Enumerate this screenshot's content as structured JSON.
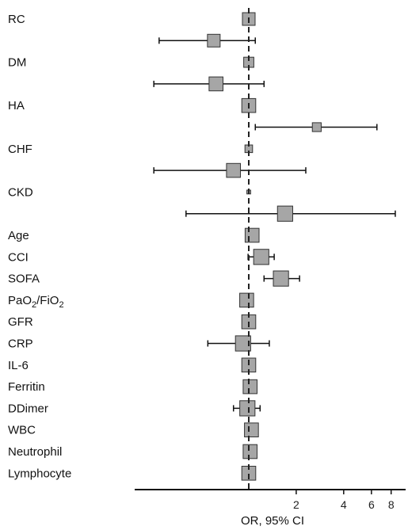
{
  "chart_data": {
    "type": "forest",
    "xlabel": "OR, 95% CI",
    "x_scale": "log",
    "x_ticks": [
      2,
      4,
      6,
      8
    ],
    "reference_line": 1,
    "rows": [
      {
        "label": "RC",
        "or": 1.0,
        "lo": 1.0,
        "hi": 1.0,
        "weight": 1.0
      },
      {
        "label": "",
        "or": 0.6,
        "lo": 0.27,
        "hi": 1.1,
        "weight": 1.0
      },
      {
        "label": "DM",
        "or": 1.0,
        "lo": 1.0,
        "hi": 1.0,
        "weight": 0.8
      },
      {
        "label": "",
        "or": 0.62,
        "lo": 0.25,
        "hi": 1.25,
        "weight": 1.1
      },
      {
        "label": "HA",
        "or": 1.0,
        "lo": 1.0,
        "hi": 1.0,
        "weight": 1.1
      },
      {
        "label": "",
        "or": 2.7,
        "lo": 1.1,
        "hi": 6.5,
        "weight": 0.7
      },
      {
        "label": "CHF",
        "or": 1.0,
        "lo": 1.0,
        "hi": 1.0,
        "weight": 0.6
      },
      {
        "label": "",
        "or": 0.8,
        "lo": 0.25,
        "hi": 2.3,
        "weight": 1.1
      },
      {
        "label": "CKD",
        "or": 1.0,
        "lo": 1.0,
        "hi": 1.0,
        "weight": 0.3
      },
      {
        "label": "",
        "or": 1.7,
        "lo": 0.4,
        "hi": 8.5,
        "weight": 1.2
      },
      {
        "label": "Age",
        "or": 1.05,
        "lo": 1.02,
        "hi": 1.08,
        "weight": 1.1
      },
      {
        "label": "CCI",
        "or": 1.2,
        "lo": 0.99,
        "hi": 1.45,
        "weight": 1.2
      },
      {
        "label": "SOFA",
        "or": 1.6,
        "lo": 1.25,
        "hi": 2.1,
        "weight": 1.2
      },
      {
        "label": "PaO2/FiO2",
        "or": 0.97,
        "lo": 0.94,
        "hi": 1.0,
        "weight": 1.1
      },
      {
        "label": "GFR",
        "or": 1.0,
        "lo": 0.99,
        "hi": 1.01,
        "weight": 1.1
      },
      {
        "label": "CRP",
        "or": 0.92,
        "lo": 0.55,
        "hi": 1.35,
        "weight": 1.2
      },
      {
        "label": "IL-6",
        "or": 1.0,
        "lo": 1.0,
        "hi": 1.0,
        "weight": 1.1
      },
      {
        "label": "Ferritin",
        "or": 1.02,
        "lo": 1.0,
        "hi": 1.04,
        "weight": 1.1
      },
      {
        "label": "DDimer",
        "or": 0.98,
        "lo": 0.8,
        "hi": 1.18,
        "weight": 1.2
      },
      {
        "label": "WBC",
        "or": 1.04,
        "lo": 1.0,
        "hi": 1.1,
        "weight": 1.1
      },
      {
        "label": "Neutrophil",
        "or": 1.02,
        "lo": 0.99,
        "hi": 1.05,
        "weight": 1.1
      },
      {
        "label": "Lymphocyte",
        "or": 1.0,
        "lo": 0.97,
        "hi": 1.03,
        "weight": 1.1
      }
    ],
    "colors": {
      "marker_fill": "#a6a6a6",
      "marker_stroke": "#333333",
      "line": "#111111"
    }
  }
}
